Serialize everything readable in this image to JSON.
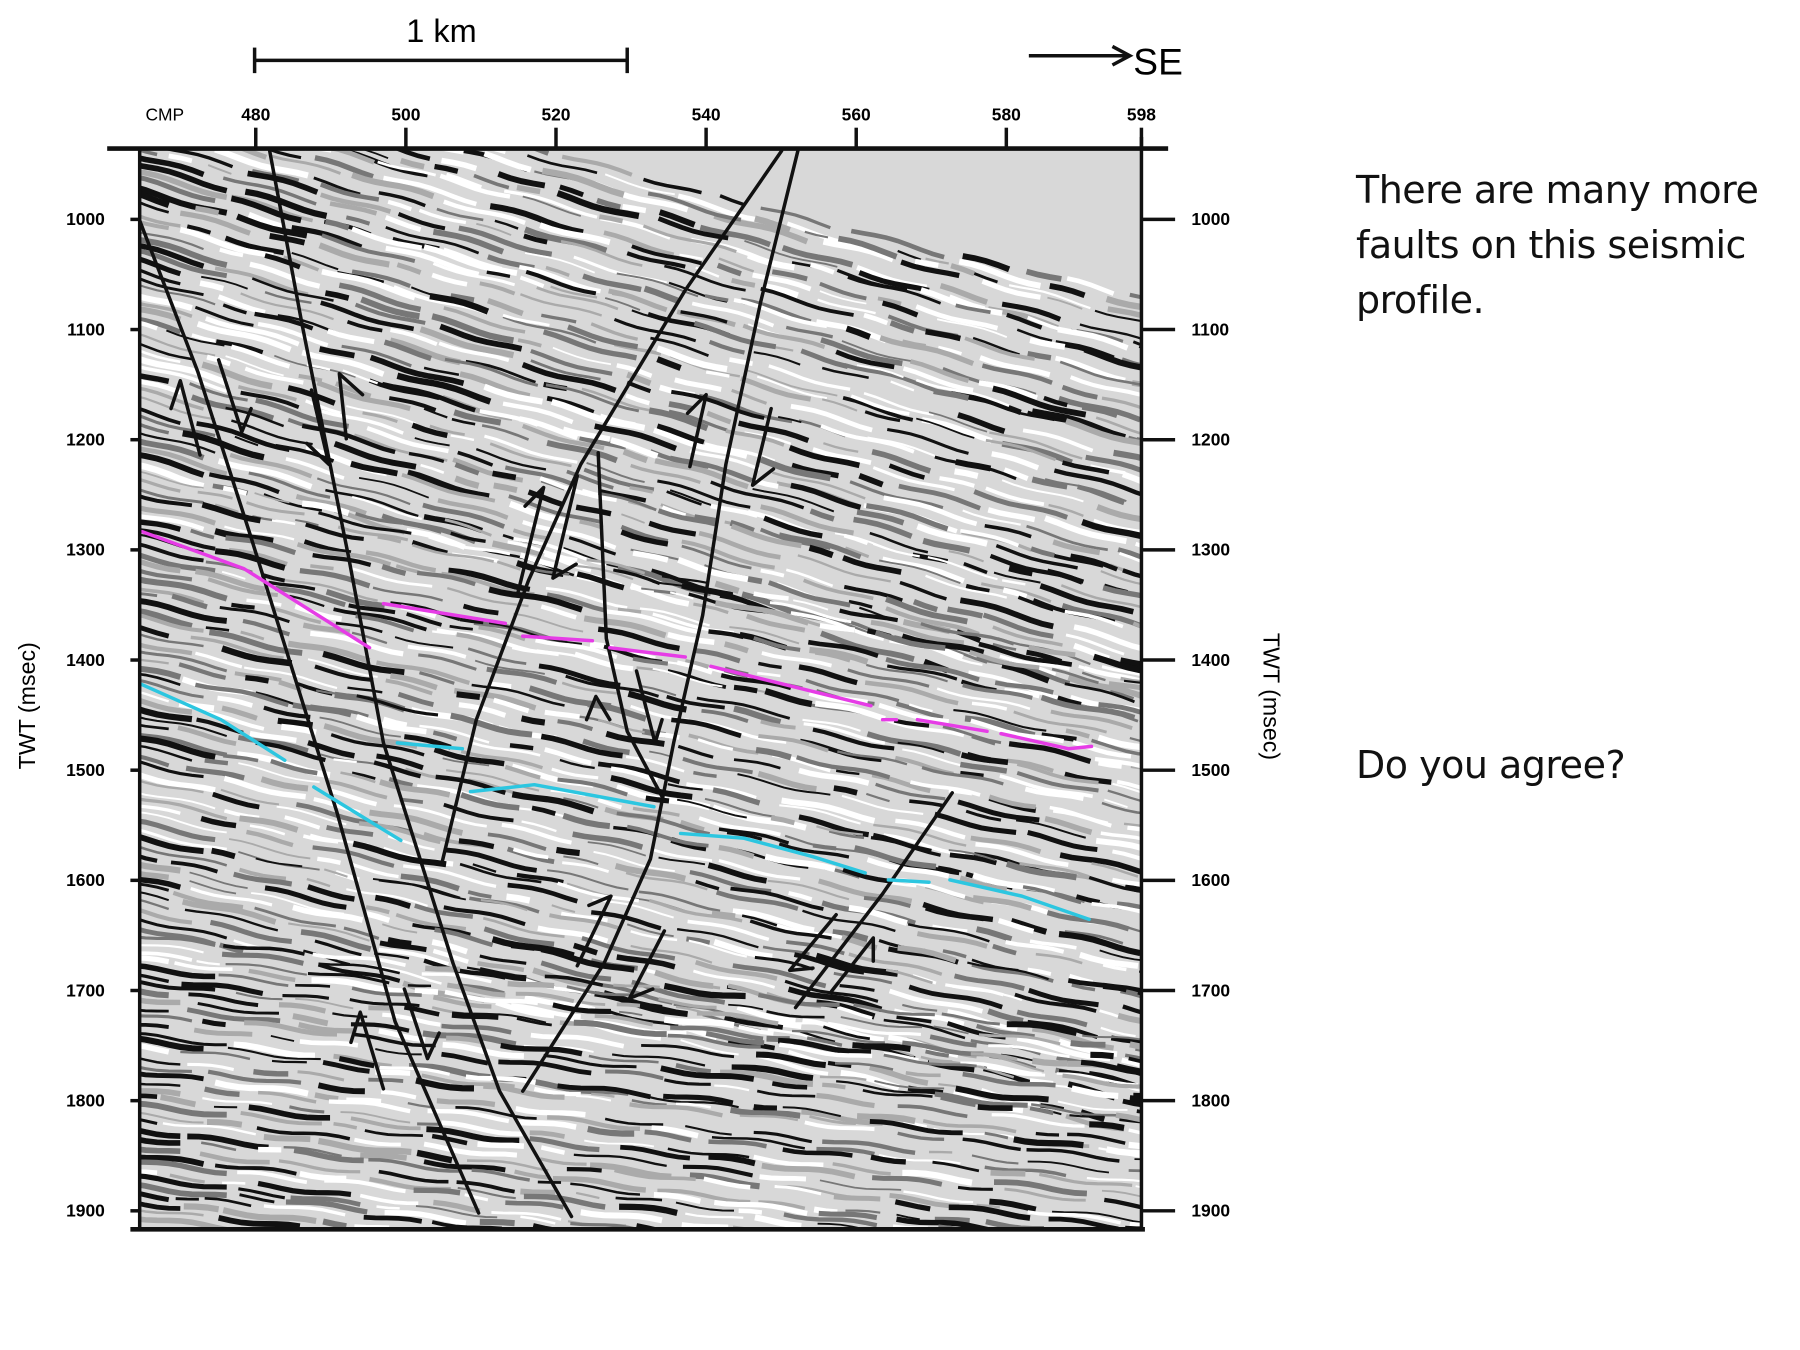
{
  "profile": {
    "scale_label": "1 km",
    "direction": "SE",
    "x_axis": {
      "label": "CMP",
      "ticks": [
        480,
        500,
        520,
        540,
        560,
        580,
        598
      ]
    },
    "y_axis": {
      "label": "TWT (msec)",
      "ticks": [
        1000,
        1100,
        1200,
        1300,
        1400,
        1500,
        1600,
        1700,
        1800,
        1900
      ]
    }
  },
  "notes": [
    "There are many more faults on this seismic profile.",
    "Do you agree?"
  ]
}
